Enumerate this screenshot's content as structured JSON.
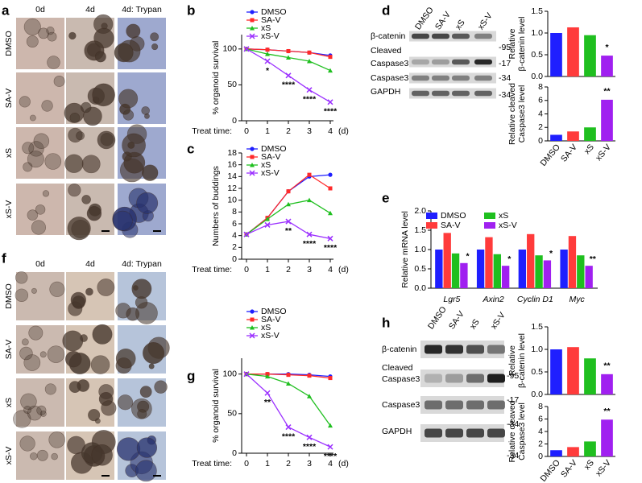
{
  "panels": [
    "a",
    "b",
    "c",
    "d",
    "e",
    "f",
    "g",
    "h"
  ],
  "micrographs": [
    {
      "columns": [
        "0d",
        "4d",
        "4d: Trypan"
      ],
      "rows": [
        "DMSO",
        "SA-V",
        "xS",
        "xS-V"
      ]
    },
    {
      "columns": [
        "0d",
        "4d",
        "4d: Trypan"
      ],
      "rows": [
        "DMSO",
        "SA-V",
        "xS",
        "xS-V"
      ]
    }
  ],
  "blots": [
    {
      "lanes": [
        "DMSO",
        "SA-V",
        "xS",
        "xS-V"
      ],
      "bands": [
        [
          "β-catenin"
        ],
        [
          "Cleaved",
          "Caspase3"
        ],
        [
          "Caspase3"
        ],
        [
          "GAPDH"
        ]
      ],
      "markers": [
        "-95",
        "-17",
        "-34",
        "-34"
      ]
    },
    {
      "lanes": [
        "DMSO",
        "SA-V",
        "xS",
        "xS-V"
      ],
      "bands": [
        [
          "β-catenin"
        ],
        [
          "Cleaved",
          "Caspase3"
        ],
        [
          "Caspase3"
        ],
        [
          "GAPDH"
        ]
      ],
      "markers": [
        "-95",
        "-17",
        "-34",
        "-34"
      ]
    }
  ],
  "chart_data": [
    {
      "type": "line",
      "xlabel": "Treat time:",
      "xunit": "(d)",
      "ylabel": "% organoid survival",
      "x": [
        0,
        1,
        2,
        3,
        4
      ],
      "xlim": [
        0,
        4
      ],
      "xticks": [
        0,
        1,
        2,
        3,
        4
      ],
      "ylim": [
        0,
        120
      ],
      "yticks": [
        0,
        50,
        100
      ],
      "legend": "top-left",
      "series": [
        {
          "name": "DMSO",
          "color": "#1f1fff",
          "marker": "circle",
          "values": [
            100,
            99,
            97,
            95,
            91
          ]
        },
        {
          "name": "SA-V",
          "color": "#ff2a2a",
          "marker": "square",
          "values": [
            100,
            99,
            97,
            95,
            89
          ]
        },
        {
          "name": "xS",
          "color": "#1fbf1f",
          "marker": "triangle",
          "values": [
            100,
            93,
            88,
            83,
            70
          ]
        },
        {
          "name": "xS-V",
          "color": "#9b30ff",
          "marker": "x",
          "values": [
            100,
            83,
            63,
            43,
            26
          ],
          "significance": [
            null,
            "*",
            "****",
            "****",
            "****"
          ]
        }
      ]
    },
    {
      "type": "line",
      "xlabel": "Treat time:",
      "xunit": "(d)",
      "ylabel": "Numbers of buddings",
      "x": [
        0,
        1,
        2,
        3,
        4
      ],
      "xlim": [
        0,
        4
      ],
      "xticks": [
        0,
        1,
        2,
        3,
        4
      ],
      "ylim": [
        0,
        18
      ],
      "yticks": [
        0,
        2,
        4,
        6,
        8,
        10,
        12,
        14,
        16,
        18
      ],
      "legend": "top-left",
      "series": [
        {
          "name": "DMSO",
          "color": "#1f1fff",
          "marker": "circle",
          "values": [
            4.2,
            7,
            11.5,
            14,
            14.3
          ]
        },
        {
          "name": "SA-V",
          "color": "#ff2a2a",
          "marker": "square",
          "values": [
            4.2,
            7,
            11.5,
            14.3,
            12
          ]
        },
        {
          "name": "xS",
          "color": "#1fbf1f",
          "marker": "triangle",
          "values": [
            4.2,
            6.8,
            9.3,
            10,
            7.8
          ]
        },
        {
          "name": "xS-V",
          "color": "#9b30ff",
          "marker": "x",
          "values": [
            4.2,
            5.8,
            6.4,
            4.2,
            3.5
          ],
          "significance": [
            null,
            null,
            "**",
            "****",
            "****"
          ]
        }
      ]
    },
    {
      "type": "line",
      "xlabel": "Treat time:",
      "xunit": "(d)",
      "ylabel": "% organoid survival",
      "x": [
        0,
        1,
        2,
        3,
        4
      ],
      "xlim": [
        0,
        4
      ],
      "xticks": [
        0,
        1,
        2,
        3,
        4
      ],
      "ylim": [
        0,
        120
      ],
      "yticks": [
        0,
        50,
        100
      ],
      "legend": "top-left",
      "series": [
        {
          "name": "DMSO",
          "color": "#1f1fff",
          "marker": "circle",
          "values": [
            100,
            100,
            100,
            99,
            97
          ]
        },
        {
          "name": "SA-V",
          "color": "#ff2a2a",
          "marker": "square",
          "values": [
            100,
            100,
            99,
            98,
            95
          ]
        },
        {
          "name": "xS",
          "color": "#1fbf1f",
          "marker": "triangle",
          "values": [
            100,
            97,
            88,
            72,
            35
          ]
        },
        {
          "name": "xS-V",
          "color": "#9b30ff",
          "marker": "x",
          "values": [
            100,
            76,
            33,
            20,
            8
          ],
          "significance": [
            null,
            "**",
            "****",
            "****",
            "****"
          ]
        }
      ]
    },
    {
      "type": "bar",
      "ylabel": [
        "Relative",
        "β-catenin level"
      ],
      "values": [
        1.0,
        1.13,
        0.95,
        0.48
      ],
      "colors": [
        "#1f1fff",
        "#ff3b3b",
        "#1fbf1f",
        "#a020f0"
      ],
      "ylim": [
        0,
        1.5
      ],
      "yticks": [
        {
          "value": 0,
          "label": "0.0"
        },
        0.5,
        {
          "value": 1,
          "label": "1.0"
        },
        1.5
      ],
      "significance": [
        null,
        null,
        null,
        "*"
      ]
    },
    {
      "type": "bar",
      "ylabel": [
        "Relative cleaved",
        "Caspase3 level"
      ],
      "categories": [
        "DMSO",
        "SA-V",
        "xS",
        "xS-V"
      ],
      "values": [
        0.9,
        1.4,
        2.0,
        6.1
      ],
      "colors": [
        "#1f1fff",
        "#ff3b3b",
        "#1fbf1f",
        "#a020f0"
      ],
      "ylim": [
        0,
        8
      ],
      "yticks": [
        0,
        2,
        4,
        6,
        8
      ],
      "significance": [
        null,
        null,
        null,
        "**"
      ]
    },
    {
      "type": "bar",
      "ylabel": "Relative mRNA level",
      "categories": [
        "Lgr5",
        "Axin2",
        "Cyclin D1",
        "Myc"
      ],
      "ylim": [
        0,
        2
      ],
      "yticks": [
        {
          "value": 0,
          "label": "0.0"
        },
        0.5,
        {
          "value": 1,
          "label": "1.0"
        },
        1.5,
        {
          "value": 2,
          "label": "2.0"
        }
      ],
      "legend": "top",
      "series": [
        {
          "name": "DMSO",
          "color": "#1f1fff",
          "values": [
            1,
            1,
            1,
            1
          ]
        },
        {
          "name": "SA-V",
          "color": "#ff3b3b",
          "values": [
            1.43,
            1.32,
            1.4,
            1.35
          ]
        },
        {
          "name": "xS",
          "color": "#1fbf1f",
          "values": [
            0.9,
            0.88,
            0.85,
            0.85
          ]
        },
        {
          "name": "xS-V",
          "color": "#a020f0",
          "values": [
            0.65,
            0.58,
            0.72,
            0.58
          ],
          "significance": [
            "*",
            "*",
            "*",
            "**"
          ]
        }
      ]
    },
    {
      "type": "bar",
      "ylabel": [
        "Relative",
        "β-catenin level"
      ],
      "values": [
        1.0,
        1.05,
        0.8,
        0.45
      ],
      "colors": [
        "#1f1fff",
        "#ff3b3b",
        "#1fbf1f",
        "#a020f0"
      ],
      "ylim": [
        0,
        1.5
      ],
      "yticks": [
        {
          "value": 0,
          "label": "0.0"
        },
        0.5,
        {
          "value": 1,
          "label": "1.0"
        },
        1.5
      ],
      "significance": [
        null,
        null,
        null,
        "**"
      ]
    },
    {
      "type": "bar",
      "ylabel": [
        "Relative cleaved",
        "Caspase3 level"
      ],
      "categories": [
        "DMSO",
        "SA-V",
        "xS",
        "xS-V"
      ],
      "values": [
        1.0,
        1.5,
        2.4,
        5.9
      ],
      "colors": [
        "#1f1fff",
        "#ff3b3b",
        "#1fbf1f",
        "#a020f0"
      ],
      "ylim": [
        0,
        8
      ],
      "yticks": [
        0,
        2,
        4,
        6,
        8
      ],
      "significance": [
        null,
        null,
        null,
        "**"
      ]
    }
  ]
}
